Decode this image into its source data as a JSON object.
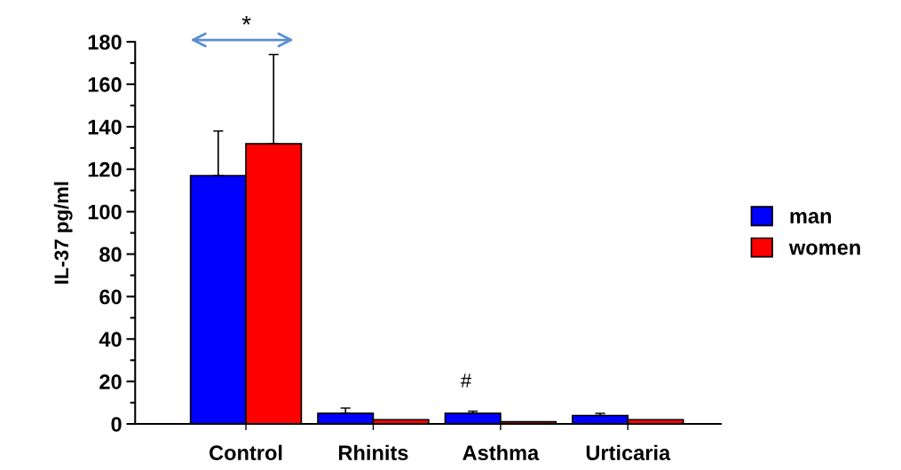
{
  "chart_data": {
    "type": "bar",
    "ylabel": "IL-37 pg/ml",
    "categories": [
      "Control",
      "Rhinits",
      "Asthma",
      "Urticaria"
    ],
    "series": [
      {
        "name": "man",
        "color": "#0000ff",
        "values": [
          117,
          5,
          5,
          4
        ],
        "errors": [
          21,
          2.5,
          1,
          1
        ]
      },
      {
        "name": "women",
        "color": "#ff0000",
        "values": [
          132,
          2,
          1,
          2
        ],
        "errors": [
          42,
          null,
          null,
          null
        ]
      }
    ],
    "ylim": [
      0,
      180
    ],
    "yticks": [
      0,
      20,
      40,
      60,
      80,
      100,
      120,
      140,
      160,
      180
    ],
    "grid": false,
    "legend": "right",
    "annotations": [
      "*",
      "#"
    ]
  }
}
